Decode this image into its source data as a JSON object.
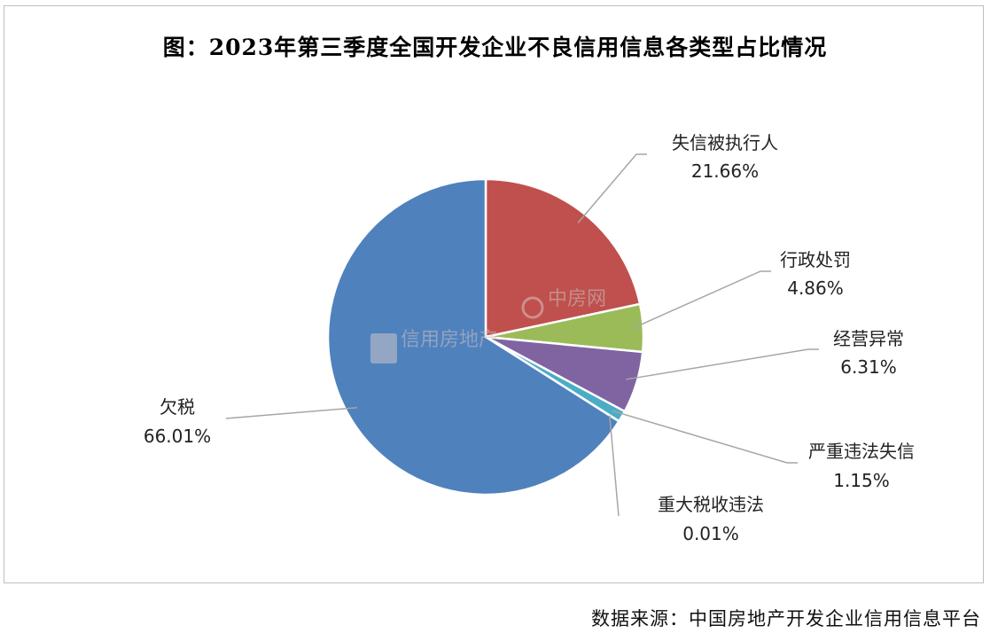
{
  "chart_data": {
    "type": "pie",
    "title": "图：2023年第三季度全国开发企业不良信用信息各类型占比情况",
    "slices": [
      {
        "name": "失信被执行人",
        "value": 21.66,
        "label": "21.66%",
        "color": "#c0504d"
      },
      {
        "name": "行政处罚",
        "value": 4.86,
        "label": "4.86%",
        "color": "#9bbb59"
      },
      {
        "name": "经营异常",
        "value": 6.31,
        "label": "6.31%",
        "color": "#8064a2"
      },
      {
        "name": "严重违法失信",
        "value": 1.15,
        "label": "1.15%",
        "color": "#4bacc6"
      },
      {
        "name": "重大税收违法",
        "value": 0.01,
        "label": "0.01%",
        "color": "#f79646"
      },
      {
        "name": "欠税",
        "value": 66.01,
        "label": "66.01%",
        "color": "#4f81bd"
      }
    ]
  },
  "source": "数据来源：中国房地产开发企业信用信息平台",
  "watermark": {
    "left": "信用房地产",
    "right": "中房网"
  }
}
